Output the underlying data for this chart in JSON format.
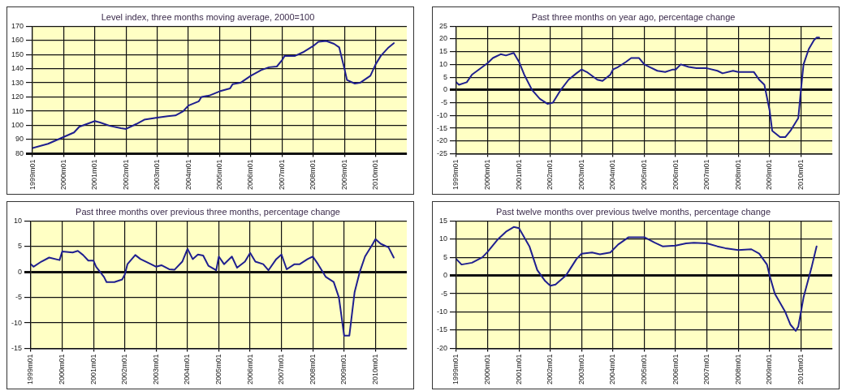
{
  "chart_data": [
    {
      "type": "line",
      "title": "Level index, three months moving average, 2000=100",
      "xlim": [
        "1999-01",
        "2011-01"
      ],
      "xticks": [
        {
          "value": "1999-01",
          "label": "1999m01"
        },
        {
          "value": "2000-01",
          "label": "2000m01"
        },
        {
          "value": "2001-01",
          "label": "2001m01"
        },
        {
          "value": "2002-01",
          "label": "2002m01"
        },
        {
          "value": "2003-01",
          "label": "2003m01"
        },
        {
          "value": "2004-01",
          "label": "2004m01"
        },
        {
          "value": "2005-01",
          "label": "2005m01"
        },
        {
          "value": "2006-01",
          "label": "2006m01"
        },
        {
          "value": "2007-01",
          "label": "2007m01"
        },
        {
          "value": "2008-01",
          "label": "2008m01"
        },
        {
          "value": "2009-01",
          "label": "2009m01"
        },
        {
          "value": "2010-01",
          "label": "2010m01"
        }
      ],
      "ylim": [
        80,
        170
      ],
      "yticks": [
        80,
        90,
        100,
        110,
        120,
        130,
        140,
        150,
        160,
        170
      ],
      "grid": true,
      "legend": false,
      "marker": "none",
      "line_style": "solid",
      "x": [
        "1999-01",
        "1999-07",
        "1999-12",
        "2000-05",
        "2000-07",
        "2000-10",
        "2001-01",
        "2001-03",
        "2001-07",
        "2001-11",
        "2002-01",
        "2002-05",
        "2002-08",
        "2003-01",
        "2003-05",
        "2003-08",
        "2003-11",
        "2004-01",
        "2004-05",
        "2004-06",
        "2004-09",
        "2005-01",
        "2005-05",
        "2005-06",
        "2005-09",
        "2006-01",
        "2006-05",
        "2006-08",
        "2006-11",
        "2007-01",
        "2007-02",
        "2007-06",
        "2007-09",
        "2008-01",
        "2008-03",
        "2008-06",
        "2008-09",
        "2008-11",
        "2009-01",
        "2009-02",
        "2009-05",
        "2009-07",
        "2009-11",
        "2010-01",
        "2010-03",
        "2010-06",
        "2010-08"
      ],
      "series": [
        {
          "color": "#1f1f8f",
          "values": [
            84,
            87,
            91,
            95,
            99,
            101,
            103,
            102,
            99.5,
            98,
            97.5,
            101,
            104,
            105.5,
            106.5,
            107,
            110,
            114,
            117,
            120,
            121,
            124,
            126,
            129,
            130,
            135,
            139,
            141,
            141.5,
            146,
            149,
            149,
            151.5,
            156,
            159,
            159.5,
            157.5,
            155,
            140,
            132,
            129.5,
            130,
            135,
            143,
            149,
            155,
            158
          ]
        }
      ]
    },
    {
      "type": "line",
      "title": "Past three months on year ago, percentage change",
      "xlim": [
        "1999-01",
        "2011-01"
      ],
      "xticks": [
        {
          "value": "1999-01",
          "label": "1999m01"
        },
        {
          "value": "2000-01",
          "label": "2000m01"
        },
        {
          "value": "2001-01",
          "label": "2001m01"
        },
        {
          "value": "2002-01",
          "label": "2002m01"
        },
        {
          "value": "2003-01",
          "label": "2003m01"
        },
        {
          "value": "2004-01",
          "label": "2004m01"
        },
        {
          "value": "2005-01",
          "label": "2005m01"
        },
        {
          "value": "2006-01",
          "label": "2006m01"
        },
        {
          "value": "2007-01",
          "label": "2007m01"
        },
        {
          "value": "2008-01",
          "label": "2008m01"
        },
        {
          "value": "2009-01",
          "label": "2009m01"
        },
        {
          "value": "2010-01",
          "label": "2010m01"
        }
      ],
      "ylim": [
        -25,
        25
      ],
      "yticks": [
        -25,
        -20,
        -15,
        -10,
        -5,
        0,
        5,
        10,
        15,
        20,
        25
      ],
      "grid": true,
      "legend": false,
      "marker": "none",
      "line_style": "solid",
      "x": [
        "1999-01",
        "1999-02",
        "1999-05",
        "1999-07",
        "1999-09",
        "2000-01",
        "2000-03",
        "2000-06",
        "2000-08",
        "2000-11",
        "2001-01",
        "2001-03",
        "2001-06",
        "2001-09",
        "2001-12",
        "2002-02",
        "2002-05",
        "2002-08",
        "2002-11",
        "2003-01",
        "2003-03",
        "2003-05",
        "2003-07",
        "2003-09",
        "2003-12",
        "2004-01",
        "2004-03",
        "2004-06",
        "2004-08",
        "2004-11",
        "2005-01",
        "2005-03",
        "2005-06",
        "2005-09",
        "2005-12",
        "2006-01",
        "2006-03",
        "2006-06",
        "2006-09",
        "2007-01",
        "2007-05",
        "2007-07",
        "2007-11",
        "2008-01",
        "2008-05",
        "2008-07",
        "2008-09",
        "2008-11",
        "2009-01",
        "2009-02",
        "2009-05",
        "2009-07",
        "2009-09",
        "2009-12",
        "2010-01",
        "2010-02",
        "2010-04",
        "2010-06",
        "2010-07",
        "2010-08"
      ],
      "series": [
        {
          "color": "#1f1f8f",
          "values": [
            3,
            2,
            3,
            6,
            7.5,
            10.5,
            12.5,
            14,
            13.5,
            14.5,
            11,
            6,
            0,
            -3.5,
            -5.5,
            -5,
            0,
            4,
            6.5,
            8,
            7,
            5.5,
            4,
            3.5,
            6,
            8,
            9,
            11,
            12.5,
            12.5,
            10,
            9,
            7.5,
            7,
            8,
            8,
            10,
            9,
            8.5,
            8.5,
            7.5,
            6.5,
            7.5,
            7,
            7,
            7,
            4,
            2,
            -8,
            -16,
            -18.5,
            -18.5,
            -16,
            -11,
            0,
            10,
            16,
            19.5,
            20.5,
            20.5
          ]
        }
      ]
    },
    {
      "type": "line",
      "title": "Past three months over previous three months, percentage change",
      "xlim": [
        "1999-01",
        "2011-01"
      ],
      "xticks": [
        {
          "value": "1999-01",
          "label": "1999m01"
        },
        {
          "value": "2000-01",
          "label": "2000m01"
        },
        {
          "value": "2001-01",
          "label": "2001m01"
        },
        {
          "value": "2002-01",
          "label": "2002m01"
        },
        {
          "value": "2003-01",
          "label": "2003m01"
        },
        {
          "value": "2004-01",
          "label": "2004m01"
        },
        {
          "value": "2005-01",
          "label": "2005m01"
        },
        {
          "value": "2006-01",
          "label": "2006m01"
        },
        {
          "value": "2007-01",
          "label": "2007m01"
        },
        {
          "value": "2008-01",
          "label": "2008m01"
        },
        {
          "value": "2009-01",
          "label": "2009m01"
        },
        {
          "value": "2010-01",
          "label": "2010m01"
        }
      ],
      "ylim": [
        -15,
        10
      ],
      "yticks": [
        -15,
        -10,
        -5,
        0,
        5,
        10
      ],
      "grid": true,
      "legend": false,
      "marker": "none",
      "line_style": "solid",
      "x": [
        "1999-01",
        "1999-02",
        "1999-05",
        "1999-08",
        "1999-12",
        "2000-01",
        "2000-05",
        "2000-07",
        "2000-09",
        "2000-11",
        "2001-01",
        "2001-02",
        "2001-05",
        "2001-06",
        "2001-09",
        "2001-12",
        "2002-01",
        "2002-02",
        "2002-05",
        "2002-07",
        "2002-11",
        "2003-01",
        "2003-03",
        "2003-06",
        "2003-08",
        "2003-11",
        "2004-01",
        "2004-03",
        "2004-05",
        "2004-07",
        "2004-09",
        "2004-12",
        "2005-01",
        "2005-03",
        "2005-06",
        "2005-08",
        "2005-11",
        "2006-01",
        "2006-03",
        "2006-06",
        "2006-08",
        "2006-11",
        "2007-01",
        "2007-03",
        "2007-06",
        "2007-08",
        "2007-11",
        "2008-01",
        "2008-03",
        "2008-06",
        "2008-09",
        "2008-11",
        "2009-01",
        "2009-03",
        "2009-05",
        "2009-07",
        "2009-09",
        "2009-12",
        "2010-01",
        "2010-03",
        "2010-06",
        "2010-08"
      ],
      "series": [
        {
          "color": "#1f1f8f",
          "values": [
            1.5,
            1,
            2,
            2.8,
            2.3,
            4,
            3.8,
            4.1,
            3.3,
            2.2,
            2.2,
            1,
            -1,
            -2,
            -2,
            -1.5,
            -0.5,
            1.5,
            3.3,
            2.5,
            1.5,
            1,
            1.3,
            0.5,
            0.4,
            2,
            4.5,
            2.5,
            3.4,
            3.2,
            1.2,
            0.3,
            3,
            1.5,
            3,
            0.8,
            2,
            3.7,
            2,
            1.5,
            0.3,
            2.5,
            3.4,
            0.5,
            1.5,
            1.5,
            2.5,
            3,
            1.5,
            -1,
            -2,
            -5,
            -12.5,
            -12.5,
            -4,
            0,
            3,
            5.5,
            6.4,
            5.5,
            4.8,
            2.8
          ]
        }
      ]
    },
    {
      "type": "line",
      "title": "Past twelve months over previous twelve months, percentage change",
      "xlim": [
        "1999-01",
        "2011-01"
      ],
      "xticks": [
        {
          "value": "1999-01",
          "label": "1999m01"
        },
        {
          "value": "2000-01",
          "label": "2000m01"
        },
        {
          "value": "2001-01",
          "label": "2001m01"
        },
        {
          "value": "2002-01",
          "label": "2002m01"
        },
        {
          "value": "2003-01",
          "label": "2003m01"
        },
        {
          "value": "2004-01",
          "label": "2004m01"
        },
        {
          "value": "2005-01",
          "label": "2005m01"
        },
        {
          "value": "2006-01",
          "label": "2006m01"
        },
        {
          "value": "2007-01",
          "label": "2007m01"
        },
        {
          "value": "2008-01",
          "label": "2008m01"
        },
        {
          "value": "2009-01",
          "label": "2009m01"
        },
        {
          "value": "2010-01",
          "label": "2010m01"
        }
      ],
      "ylim": [
        -20,
        15
      ],
      "yticks": [
        -20,
        -15,
        -10,
        -5,
        0,
        5,
        10,
        15
      ],
      "grid": true,
      "legend": false,
      "marker": "none",
      "line_style": "solid",
      "x": [
        "1999-01",
        "1999-03",
        "1999-07",
        "1999-11",
        "2000-01",
        "2000-05",
        "2000-08",
        "2000-11",
        "2001-01",
        "2001-05",
        "2001-08",
        "2001-11",
        "2002-01",
        "2002-03",
        "2002-07",
        "2002-11",
        "2003-01",
        "2003-05",
        "2003-08",
        "2003-12",
        "2004-03",
        "2004-07",
        "2004-11",
        "2005-01",
        "2005-05",
        "2005-08",
        "2006-01",
        "2006-05",
        "2006-08",
        "2007-01",
        "2007-05",
        "2007-08",
        "2008-01",
        "2008-06",
        "2008-09",
        "2008-12",
        "2009-01",
        "2009-03",
        "2009-07",
        "2009-09",
        "2009-11",
        "2009-12",
        "2010-02",
        "2010-05",
        "2010-07"
      ],
      "series": [
        {
          "color": "#1f1f8f",
          "values": [
            4.5,
            3,
            3.5,
            5,
            6.5,
            10,
            12,
            13.3,
            13,
            8,
            1.5,
            -1.5,
            -2.8,
            -2.5,
            0,
            4.5,
            6,
            6.3,
            5.8,
            6.3,
            8.5,
            10.5,
            10.5,
            10.5,
            9,
            8,
            8.2,
            8.8,
            9,
            8.8,
            8,
            7.5,
            7,
            7.2,
            6,
            3,
            0,
            -5,
            -10,
            -13.5,
            -15.2,
            -14,
            -6,
            2,
            8
          ]
        }
      ]
    }
  ]
}
